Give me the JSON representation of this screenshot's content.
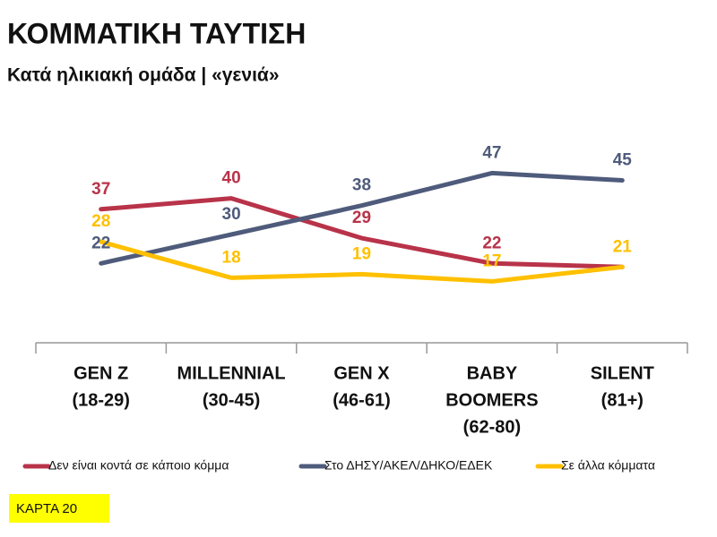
{
  "chart_data": {
    "type": "line",
    "title": "ΚΟΜΜΑΤΙΚΗ ΤΑΥΤΙΣΗ",
    "subtitle": "Κατά ηλικιακή ομάδα | «γενιά»",
    "categories": [
      [
        "GEN Z",
        "(18-29)"
      ],
      [
        "MILLENNIAL",
        "(30-45)"
      ],
      [
        "GEN X",
        "(46-61)"
      ],
      [
        "BABY",
        "BOOMERS",
        "(62-80)"
      ],
      [
        "SILENT",
        "(81+)"
      ]
    ],
    "series": [
      {
        "name": "Δεν είναι κοντά σε κάποιο κόμμα",
        "color": "#b83349",
        "values": [
          37,
          40,
          29,
          22,
          21
        ],
        "value_labels": [
          "37",
          "40",
          "29",
          "22",
          null
        ]
      },
      {
        "name": "Στο ΔΗΣΥ/ΑΚΕΛ/ΔΗΚΟ/ΕΔΕΚ",
        "color": "#4f5b7b",
        "values": [
          22,
          30,
          38,
          47,
          45
        ],
        "value_labels": [
          "22",
          "30",
          "38",
          "47",
          "45"
        ]
      },
      {
        "name": "Σε άλλα κόμματα",
        "color": "#ffc000",
        "values": [
          28,
          18,
          19,
          17,
          21
        ],
        "value_labels": [
          "28",
          "18",
          "19",
          "17",
          "21"
        ]
      }
    ],
    "ylim": [
      0,
      60
    ],
    "footnote": "ΚΑΡΤΑ 20"
  }
}
